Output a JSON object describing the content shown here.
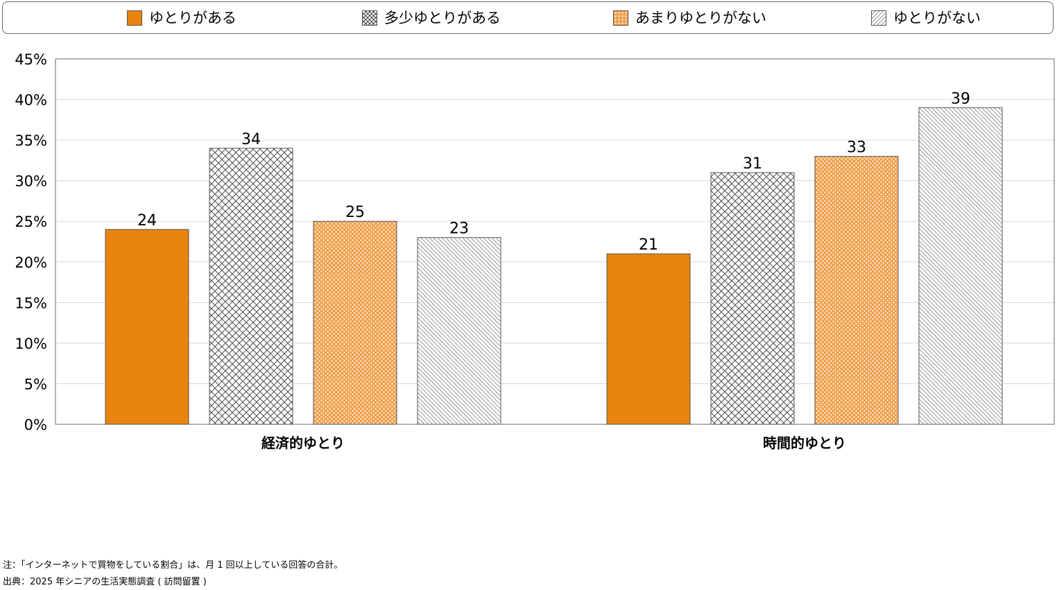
{
  "legend": {
    "items": [
      {
        "label": "ゆとりがある",
        "pattern": "solid-orange"
      },
      {
        "label": "多少ゆとりがある",
        "pattern": "crosshatch-gray"
      },
      {
        "label": "あまりゆとりがない",
        "pattern": "dots-orange"
      },
      {
        "label": "ゆとりがない",
        "pattern": "diagonal-light"
      }
    ]
  },
  "colors": {
    "orange": "#e8840f",
    "dot_orange": "#f2a04c",
    "dark_hatch": "#4d4d4d",
    "light_hatch": "#9a9a9a",
    "grid": "#d9d9d9",
    "axis": "#6a6a6a"
  },
  "chart_data": {
    "type": "bar",
    "categories": [
      "経済的ゆとり",
      "時間的ゆとり"
    ],
    "series": [
      {
        "name": "ゆとりがある",
        "values": [
          24,
          21
        ]
      },
      {
        "name": "多少ゆとりがある",
        "values": [
          34,
          31
        ]
      },
      {
        "name": "あまりゆとりがない",
        "values": [
          25,
          33
        ]
      },
      {
        "name": "ゆとりがない",
        "values": [
          23,
          39
        ]
      }
    ],
    "yticks": [
      "0%",
      "5%",
      "10%",
      "15%",
      "20%",
      "25%",
      "30%",
      "35%",
      "40%",
      "45%"
    ],
    "ylim": [
      0,
      45
    ],
    "ystep": 5,
    "grid": true,
    "legend_position": "top"
  },
  "notes": {
    "note1": "注：「インターネットで買物をしている割合」は、月 1 回以上している回答の合計。",
    "note2": "出典：2025 年シニアの生活実態調査 ( 訪問留置 )"
  }
}
